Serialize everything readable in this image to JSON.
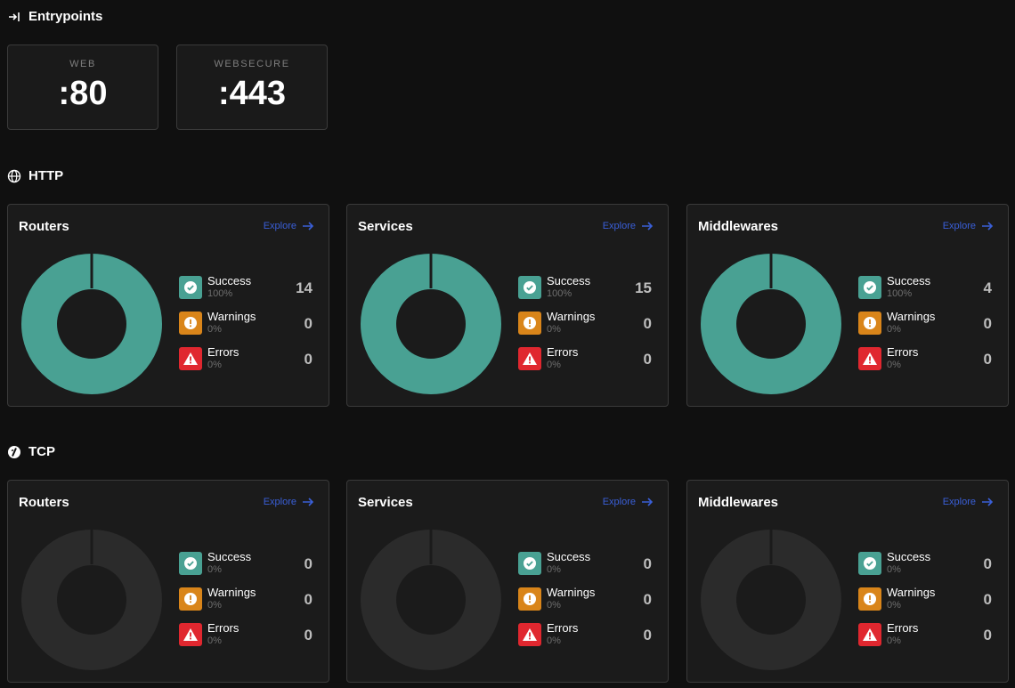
{
  "entrypoints": {
    "title": "Entrypoints",
    "items": [
      {
        "name": "WEB",
        "port": ":80"
      },
      {
        "name": "WEBSECURE",
        "port": ":443"
      }
    ]
  },
  "sections": [
    {
      "title": "HTTP",
      "icon": "globe-icon",
      "cards": [
        {
          "title": "Routers",
          "explore": "Explore",
          "success": {
            "label": "Success",
            "pct": "100%",
            "count": "14"
          },
          "warnings": {
            "label": "Warnings",
            "pct": "0%",
            "count": "0"
          },
          "errors": {
            "label": "Errors",
            "pct": "0%",
            "count": "0"
          }
        },
        {
          "title": "Services",
          "explore": "Explore",
          "success": {
            "label": "Success",
            "pct": "100%",
            "count": "15"
          },
          "warnings": {
            "label": "Warnings",
            "pct": "0%",
            "count": "0"
          },
          "errors": {
            "label": "Errors",
            "pct": "0%",
            "count": "0"
          }
        },
        {
          "title": "Middlewares",
          "explore": "Explore",
          "success": {
            "label": "Success",
            "pct": "100%",
            "count": "4"
          },
          "warnings": {
            "label": "Warnings",
            "pct": "0%",
            "count": "0"
          },
          "errors": {
            "label": "Errors",
            "pct": "0%",
            "count": "0"
          }
        }
      ]
    },
    {
      "title": "TCP",
      "icon": "tcp-icon",
      "cards": [
        {
          "title": "Routers",
          "explore": "Explore",
          "success": {
            "label": "Success",
            "pct": "0%",
            "count": "0"
          },
          "warnings": {
            "label": "Warnings",
            "pct": "0%",
            "count": "0"
          },
          "errors": {
            "label": "Errors",
            "pct": "0%",
            "count": "0"
          }
        },
        {
          "title": "Services",
          "explore": "Explore",
          "success": {
            "label": "Success",
            "pct": "0%",
            "count": "0"
          },
          "warnings": {
            "label": "Warnings",
            "pct": "0%",
            "count": "0"
          },
          "errors": {
            "label": "Errors",
            "pct": "0%",
            "count": "0"
          }
        },
        {
          "title": "Middlewares",
          "explore": "Explore",
          "success": {
            "label": "Success",
            "pct": "0%",
            "count": "0"
          },
          "warnings": {
            "label": "Warnings",
            "pct": "0%",
            "count": "0"
          },
          "errors": {
            "label": "Errors",
            "pct": "0%",
            "count": "0"
          }
        }
      ]
    }
  ],
  "colors": {
    "success": "#49a193",
    "warning": "#d9851a",
    "error": "#e0272f",
    "donut_empty": "#2b2b2b",
    "explore": "#3a5fd8"
  }
}
